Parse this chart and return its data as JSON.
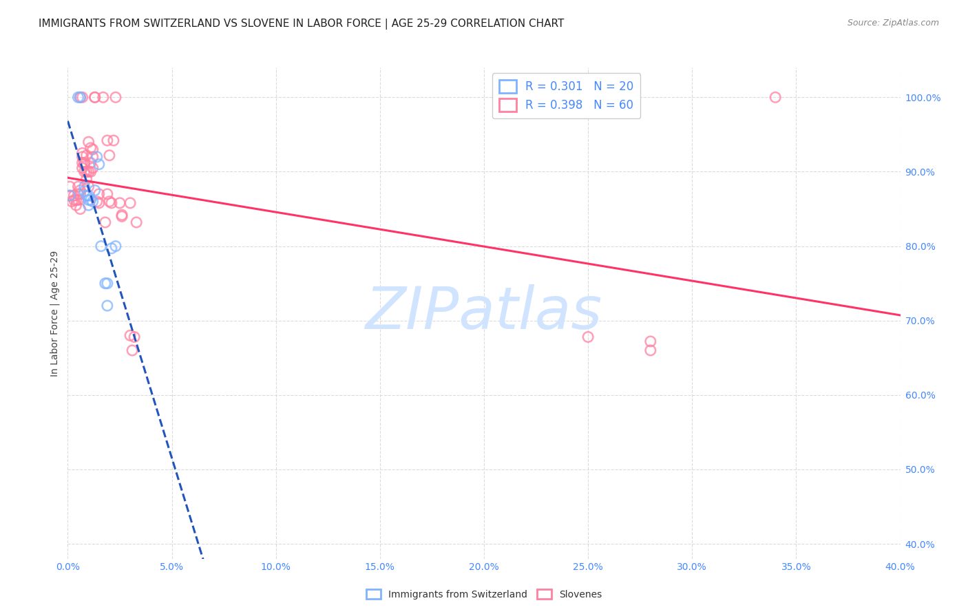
{
  "title": "IMMIGRANTS FROM SWITZERLAND VS SLOVENE IN LABOR FORCE | AGE 25-29 CORRELATION CHART",
  "source": "Source: ZipAtlas.com",
  "ylabel": "In Labor Force | Age 25-29",
  "x_min": 0.0,
  "x_max": 0.4,
  "y_min": 0.38,
  "y_max": 1.04,
  "x_ticks": [
    0.0,
    0.05,
    0.1,
    0.15,
    0.2,
    0.25,
    0.3,
    0.35,
    0.4
  ],
  "y_ticks": [
    0.4,
    0.5,
    0.6,
    0.7,
    0.8,
    0.9,
    1.0
  ],
  "legend_swiss_label": "R = 0.301   N = 20",
  "legend_slovene_label": "R = 0.398   N = 60",
  "swiss_color": "#80b3ff",
  "slovene_color": "#ff80a0",
  "trendline_swiss_color": "#2255bb",
  "trendline_slovene_color": "#ff3366",
  "swiss_points": [
    [
      0.001,
      0.868
    ],
    [
      0.005,
      1.0
    ],
    [
      0.006,
      1.0
    ],
    [
      0.008,
      0.874
    ],
    [
      0.008,
      0.88
    ],
    [
      0.009,
      0.868
    ],
    [
      0.01,
      0.862
    ],
    [
      0.01,
      0.855
    ],
    [
      0.01,
      0.868
    ],
    [
      0.011,
      0.862
    ],
    [
      0.012,
      0.86
    ],
    [
      0.013,
      0.875
    ],
    [
      0.014,
      0.92
    ],
    [
      0.015,
      0.91
    ],
    [
      0.016,
      0.8
    ],
    [
      0.018,
      0.75
    ],
    [
      0.019,
      0.75
    ],
    [
      0.019,
      0.72
    ],
    [
      0.021,
      0.797
    ],
    [
      0.023,
      0.8
    ]
  ],
  "slovene_points": [
    [
      0.001,
      0.868
    ],
    [
      0.001,
      0.88
    ],
    [
      0.002,
      0.86
    ],
    [
      0.003,
      0.862
    ],
    [
      0.003,
      0.868
    ],
    [
      0.004,
      0.862
    ],
    [
      0.004,
      0.855
    ],
    [
      0.005,
      0.862
    ],
    [
      0.005,
      0.88
    ],
    [
      0.005,
      0.87
    ],
    [
      0.006,
      0.875
    ],
    [
      0.006,
      0.87
    ],
    [
      0.006,
      0.85
    ],
    [
      0.006,
      1.0
    ],
    [
      0.007,
      0.925
    ],
    [
      0.007,
      0.912
    ],
    [
      0.007,
      0.92
    ],
    [
      0.007,
      0.905
    ],
    [
      0.007,
      1.0
    ],
    [
      0.008,
      0.912
    ],
    [
      0.008,
      0.91
    ],
    [
      0.008,
      0.9
    ],
    [
      0.009,
      0.9
    ],
    [
      0.009,
      0.922
    ],
    [
      0.009,
      0.89
    ],
    [
      0.01,
      0.94
    ],
    [
      0.01,
      0.9
    ],
    [
      0.01,
      0.88
    ],
    [
      0.011,
      0.932
    ],
    [
      0.011,
      0.912
    ],
    [
      0.011,
      0.9
    ],
    [
      0.012,
      0.92
    ],
    [
      0.012,
      0.905
    ],
    [
      0.012,
      0.93
    ],
    [
      0.013,
      1.0
    ],
    [
      0.013,
      1.0
    ],
    [
      0.014,
      0.86
    ],
    [
      0.015,
      0.858
    ],
    [
      0.015,
      0.87
    ],
    [
      0.017,
      1.0
    ],
    [
      0.018,
      0.832
    ],
    [
      0.019,
      0.942
    ],
    [
      0.019,
      0.87
    ],
    [
      0.02,
      0.922
    ],
    [
      0.02,
      0.86
    ],
    [
      0.021,
      0.858
    ],
    [
      0.022,
      0.942
    ],
    [
      0.023,
      1.0
    ],
    [
      0.025,
      0.858
    ],
    [
      0.026,
      0.842
    ],
    [
      0.026,
      0.84
    ],
    [
      0.03,
      0.858
    ],
    [
      0.03,
      0.68
    ],
    [
      0.031,
      0.66
    ],
    [
      0.032,
      0.678
    ],
    [
      0.033,
      0.832
    ],
    [
      0.34,
      1.0
    ],
    [
      0.28,
      0.672
    ],
    [
      0.25,
      0.678
    ],
    [
      0.28,
      0.66
    ]
  ],
  "watermark_text": "ZIPatlas",
  "watermark_color": "#d0e4ff",
  "grid_color": "#d8d8d8",
  "background_color": "#ffffff",
  "tick_color": "#4488ff",
  "title_color": "#222222",
  "ylabel_color": "#444444",
  "title_fontsize": 11,
  "source_fontsize": 9,
  "legend_fontsize": 12,
  "axis_label_fontsize": 10,
  "marker_size": 110,
  "marker_lw": 1.8
}
